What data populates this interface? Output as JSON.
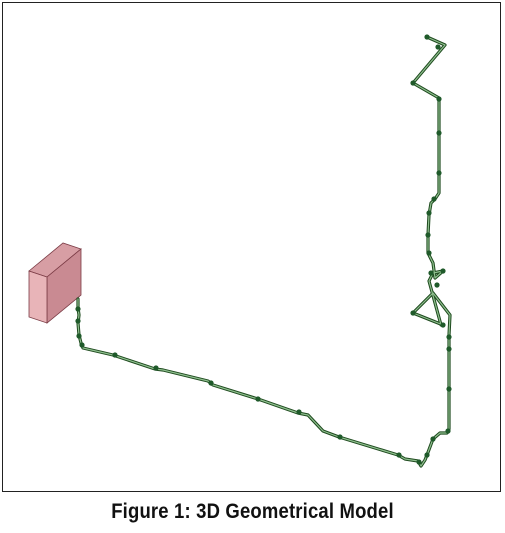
{
  "figure": {
    "caption": "Figure 1: 3D Geometrical Model"
  },
  "colors": {
    "pipe_dark": "#1e4a1e",
    "pipe_light": "#8fbf8f",
    "node": "#1f5a2a",
    "box_front": "#e8b4b8",
    "box_top": "#d79ea4",
    "box_side": "#c98a92",
    "box_edge": "#7a3a44",
    "frame": "#222222"
  },
  "model_parts": [
    "pipe-route",
    "equipment-box",
    "pipe-nodes"
  ]
}
